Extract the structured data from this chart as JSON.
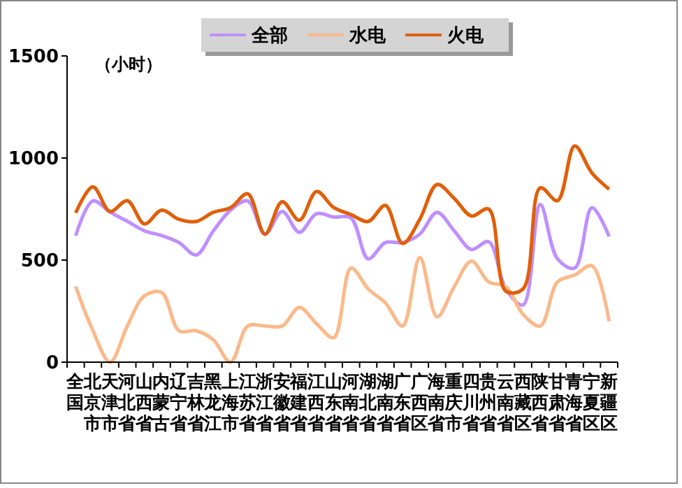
{
  "chart_data": {
    "type": "line",
    "ylabel": "（小时）",
    "categories": [
      "全国",
      "北京市",
      "天津市",
      "河北省",
      "山西省",
      "内蒙古",
      "辽宁省",
      "吉林省",
      "黑龙江",
      "上海市",
      "江苏省",
      "浙江省",
      "安徽省",
      "福建省",
      "江西省",
      "山东省",
      "河南省",
      "湖北省",
      "湖南省",
      "广东省",
      "广西区",
      "海南省",
      "重庆市",
      "四川省",
      "贵州省",
      "云南省",
      "西藏区",
      "陕西省",
      "甘肃省",
      "青海省",
      "宁夏区",
      "新疆区"
    ],
    "series": [
      {
        "name": "全部",
        "color": "#bf8fff",
        "values": [
          620,
          790,
          735,
          690,
          643,
          620,
          586,
          525,
          643,
          745,
          790,
          627,
          738,
          636,
          727,
          711,
          706,
          506,
          586,
          586,
          627,
          734,
          643,
          552,
          590,
          359,
          280,
          772,
          506,
          461,
          757,
          616
        ]
      },
      {
        "name": "水电",
        "color": "#fbb98a",
        "values": [
          370,
          154,
          0,
          177,
          325,
          341,
          154,
          154,
          109,
          0,
          177,
          177,
          177,
          268,
          188,
          120,
          461,
          359,
          290,
          177,
          513,
          222,
          370,
          495,
          393,
          370,
          234,
          177,
          393,
          427,
          472,
          200
        ]
      },
      {
        "name": "火电",
        "color": "#e05f0a",
        "values": [
          731,
          859,
          738,
          791,
          677,
          745,
          700,
          689,
          734,
          757,
          825,
          627,
          786,
          695,
          836,
          757,
          723,
          689,
          768,
          581,
          700,
          870,
          802,
          716,
          750,
          348,
          359,
          854,
          791,
          1059,
          927,
          847
        ]
      }
    ],
    "ylim": [
      0,
      1500
    ],
    "yticks": [
      0,
      500,
      1000,
      1500
    ],
    "grid": false,
    "legend": "top",
    "marker": "none",
    "line_style": "solid"
  }
}
